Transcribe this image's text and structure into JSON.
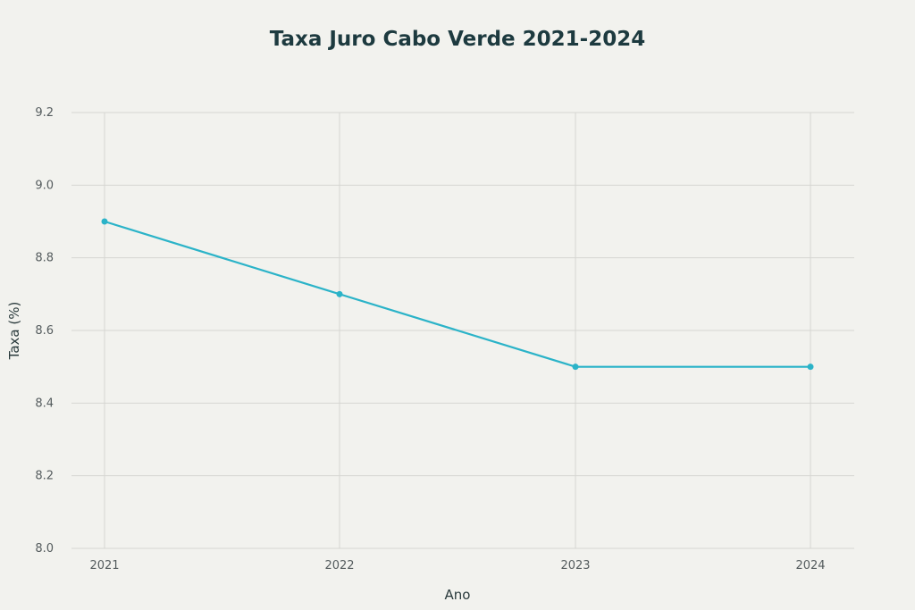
{
  "chart_data": {
    "type": "line",
    "title": "Taxa Juro Cabo Verde 2021-2024",
    "xlabel": "Ano",
    "ylabel": "Taxa (%)",
    "categories": [
      "2021",
      "2022",
      "2023",
      "2024"
    ],
    "series": [
      {
        "values": [
          8.9,
          8.7,
          8.5,
          8.5
        ],
        "color": "#2bb3c8"
      }
    ],
    "ylim": [
      8.0,
      9.2
    ],
    "yticks": [
      "8.0",
      "8.2",
      "8.4",
      "8.6",
      "8.8",
      "9.0",
      "9.2"
    ],
    "grid": true,
    "legend": "none"
  }
}
